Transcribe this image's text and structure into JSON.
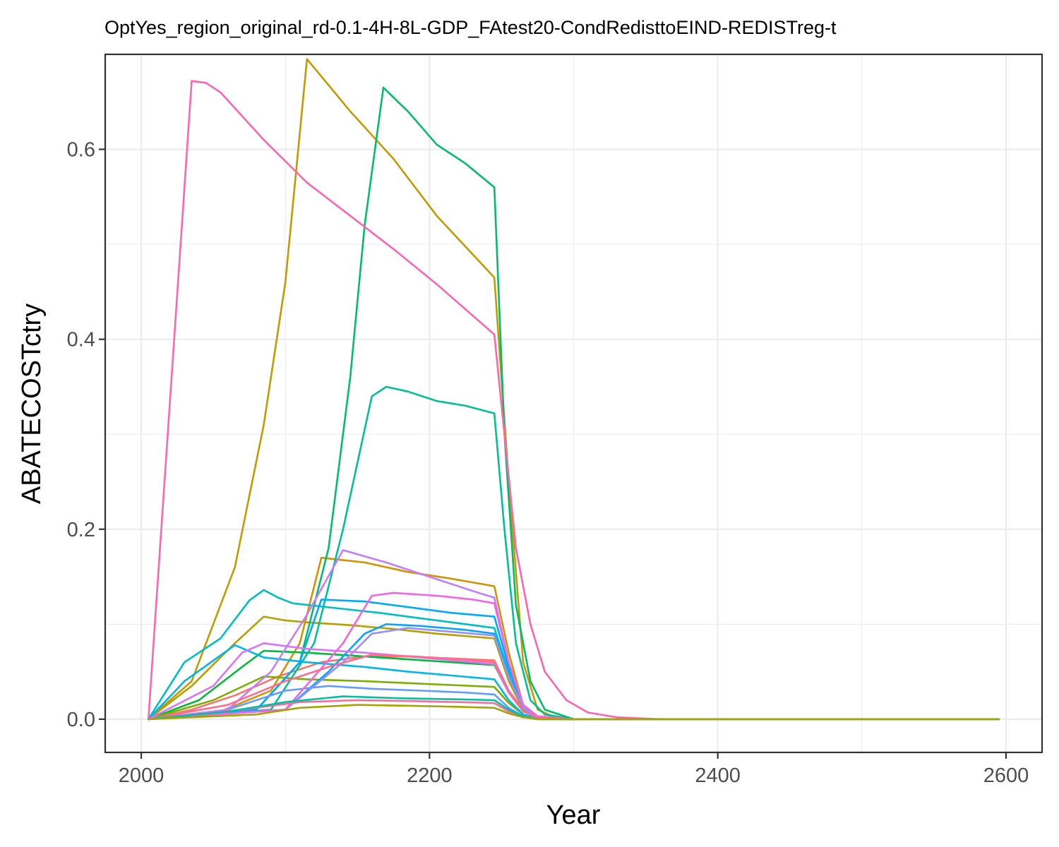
{
  "chart_data": {
    "type": "line",
    "title": "OptYes_region_original_rd-0.1-4H-8L-GDP_FAtest20-CondRedisttoEIND-REDISTreg-t",
    "xlabel": "Year",
    "ylabel": "ABATECOSTctry",
    "xlim": [
      1975,
      2625
    ],
    "ylim": [
      -0.035,
      0.7
    ],
    "x_ticks": [
      2000,
      2200,
      2400,
      2600
    ],
    "x_tick_labels": [
      "2000",
      "2200",
      "2400",
      "2600"
    ],
    "x_minor_ticks": [
      2100,
      2300,
      2500
    ],
    "y_ticks": [
      0.0,
      0.2,
      0.4,
      0.6
    ],
    "y_tick_labels": [
      "0.0",
      "0.2",
      "0.4",
      "0.6"
    ],
    "y_minor_ticks": [
      0.1,
      0.3,
      0.5
    ],
    "grid": true,
    "legend": "none",
    "series": [
      {
        "color": "#F8766D",
        "x": [
          2005,
          2035,
          2065,
          2095,
          2125,
          2155,
          2185,
          2215,
          2245,
          2255,
          2265,
          2275,
          2300,
          2400,
          2595
        ],
        "y": [
          0,
          0.01,
          0.025,
          0.045,
          0.06,
          0.066,
          0.066,
          0.064,
          0.062,
          0.03,
          0.01,
          0.003,
          0,
          0,
          0
        ]
      },
      {
        "color": "#C49A00",
        "x": [
          2005,
          2035,
          2065,
          2085,
          2100,
          2115,
          2145,
          2175,
          2205,
          2245,
          2255,
          2265,
          2275,
          2290,
          2400,
          2595
        ],
        "y": [
          0,
          0.04,
          0.16,
          0.31,
          0.46,
          0.695,
          0.64,
          0.59,
          0.53,
          0.465,
          0.25,
          0.06,
          0.01,
          0,
          0,
          0
        ]
      },
      {
        "color": "#B79F00",
        "x": [
          2005,
          2035,
          2065,
          2085,
          2100,
          2115,
          2145,
          2175,
          2205,
          2245,
          2255,
          2265,
          2275,
          2300,
          2400,
          2595
        ],
        "y": [
          0,
          0.035,
          0.08,
          0.108,
          0.104,
          0.102,
          0.099,
          0.095,
          0.09,
          0.085,
          0.04,
          0.01,
          0.002,
          0,
          0,
          0
        ]
      },
      {
        "color": "#D39200",
        "x": [
          2005,
          2050,
          2090,
          2110,
          2125,
          2155,
          2185,
          2215,
          2245,
          2255,
          2265,
          2275,
          2300,
          2400,
          2595
        ],
        "y": [
          0,
          0.005,
          0.03,
          0.08,
          0.17,
          0.165,
          0.155,
          0.148,
          0.14,
          0.07,
          0.015,
          0.003,
          0,
          0,
          0
        ]
      },
      {
        "color": "#00BA38",
        "x": [
          2005,
          2040,
          2070,
          2085,
          2115,
          2155,
          2185,
          2215,
          2245,
          2255,
          2265,
          2275,
          2300,
          2400,
          2595
        ],
        "y": [
          0,
          0.02,
          0.055,
          0.072,
          0.07,
          0.066,
          0.063,
          0.06,
          0.057,
          0.028,
          0.008,
          0.002,
          0,
          0,
          0
        ]
      },
      {
        "color": "#7CAE00",
        "x": [
          2005,
          2050,
          2085,
          2115,
          2155,
          2185,
          2215,
          2245,
          2255,
          2265,
          2275,
          2300,
          2400,
          2595
        ],
        "y": [
          0,
          0.02,
          0.045,
          0.042,
          0.04,
          0.038,
          0.036,
          0.034,
          0.017,
          0.005,
          0.001,
          0,
          0,
          0
        ]
      },
      {
        "color": "#00BE67",
        "x": [
          2005,
          2080,
          2110,
          2130,
          2145,
          2155,
          2168,
          2185,
          2205,
          2225,
          2245,
          2252,
          2260,
          2270,
          2280,
          2300,
          2400,
          2595
        ],
        "y": [
          0,
          0.01,
          0.06,
          0.18,
          0.36,
          0.52,
          0.665,
          0.64,
          0.605,
          0.585,
          0.56,
          0.3,
          0.12,
          0.04,
          0.01,
          0,
          0,
          0
        ]
      },
      {
        "color": "#00C094",
        "x": [
          2005,
          2090,
          2120,
          2140,
          2160,
          2170,
          2185,
          2205,
          2225,
          2245,
          2252,
          2260,
          2270,
          2280,
          2300,
          2400,
          2595
        ],
        "y": [
          0,
          0.01,
          0.08,
          0.2,
          0.34,
          0.35,
          0.345,
          0.335,
          0.33,
          0.322,
          0.2,
          0.08,
          0.02,
          0.005,
          0,
          0,
          0
        ]
      },
      {
        "color": "#00BFC4",
        "x": [
          2005,
          2030,
          2055,
          2075,
          2085,
          2095,
          2105,
          2135,
          2165,
          2195,
          2225,
          2245,
          2255,
          2265,
          2275,
          2300,
          2400,
          2595
        ],
        "y": [
          0,
          0.06,
          0.085,
          0.125,
          0.136,
          0.128,
          0.122,
          0.117,
          0.112,
          0.106,
          0.1,
          0.096,
          0.05,
          0.015,
          0.003,
          0,
          0,
          0
        ]
      },
      {
        "color": "#00B6EB",
        "x": [
          2005,
          2030,
          2065,
          2085,
          2115,
          2155,
          2185,
          2215,
          2245,
          2255,
          2265,
          2275,
          2300,
          2400,
          2595
        ],
        "y": [
          0,
          0.04,
          0.078,
          0.065,
          0.06,
          0.055,
          0.05,
          0.046,
          0.042,
          0.02,
          0.005,
          0.001,
          0,
          0,
          0
        ]
      },
      {
        "color": "#00A9FF",
        "x": [
          2005,
          2080,
          2110,
          2125,
          2155,
          2185,
          2215,
          2245,
          2255,
          2265,
          2275,
          2300,
          2400,
          2595
        ],
        "y": [
          0,
          0.01,
          0.06,
          0.126,
          0.124,
          0.118,
          0.112,
          0.108,
          0.055,
          0.015,
          0.003,
          0,
          0,
          0
        ]
      },
      {
        "color": "#06A4FF",
        "x": [
          2005,
          2100,
          2130,
          2155,
          2170,
          2195,
          2225,
          2245,
          2255,
          2265,
          2275,
          2300,
          2400,
          2595
        ],
        "y": [
          0,
          0.01,
          0.05,
          0.09,
          0.1,
          0.098,
          0.094,
          0.09,
          0.045,
          0.012,
          0.002,
          0,
          0,
          0
        ]
      },
      {
        "color": "#619CFF",
        "x": [
          2005,
          2060,
          2100,
          2130,
          2160,
          2195,
          2225,
          2245,
          2255,
          2265,
          2275,
          2300,
          2400,
          2595
        ],
        "y": [
          0,
          0.01,
          0.03,
          0.035,
          0.032,
          0.03,
          0.028,
          0.026,
          0.012,
          0.003,
          0.001,
          0,
          0,
          0
        ]
      },
      {
        "color": "#9590FF",
        "x": [
          2005,
          2100,
          2140,
          2160,
          2185,
          2215,
          2245,
          2255,
          2265,
          2275,
          2300,
          2400,
          2595
        ],
        "y": [
          0,
          0.01,
          0.06,
          0.09,
          0.096,
          0.092,
          0.088,
          0.044,
          0.012,
          0.002,
          0,
          0,
          0
        ]
      },
      {
        "color": "#C77CFF",
        "x": [
          2005,
          2060,
          2090,
          2115,
          2140,
          2170,
          2200,
          2230,
          2245,
          2255,
          2265,
          2275,
          2300,
          2400,
          2595
        ],
        "y": [
          0,
          0.01,
          0.05,
          0.11,
          0.178,
          0.165,
          0.15,
          0.135,
          0.128,
          0.06,
          0.015,
          0.003,
          0,
          0,
          0
        ]
      },
      {
        "color": "#DB72FB",
        "x": [
          2005,
          2050,
          2070,
          2085,
          2115,
          2155,
          2185,
          2215,
          2245,
          2255,
          2265,
          2275,
          2300,
          2400,
          2595
        ],
        "y": [
          0,
          0.035,
          0.07,
          0.08,
          0.074,
          0.07,
          0.066,
          0.062,
          0.058,
          0.028,
          0.008,
          0.002,
          0,
          0,
          0
        ]
      },
      {
        "color": "#F564E3",
        "x": [
          2005,
          2100,
          2140,
          2160,
          2175,
          2205,
          2230,
          2245,
          2255,
          2265,
          2275,
          2300,
          2400,
          2595
        ],
        "y": [
          0,
          0.01,
          0.08,
          0.13,
          0.133,
          0.13,
          0.126,
          0.122,
          0.06,
          0.015,
          0.003,
          0,
          0,
          0
        ]
      },
      {
        "color": "#FF64B0",
        "x": [
          2005,
          2035,
          2045,
          2055,
          2085,
          2115,
          2145,
          2175,
          2205,
          2245,
          2252,
          2260,
          2270,
          2280,
          2295,
          2310,
          2330,
          2360,
          2400,
          2595
        ],
        "y": [
          0,
          0.672,
          0.67,
          0.66,
          0.61,
          0.565,
          0.53,
          0.495,
          0.458,
          0.405,
          0.3,
          0.18,
          0.1,
          0.05,
          0.02,
          0.007,
          0.002,
          0,
          0,
          0
        ]
      },
      {
        "color": "#FF6C91",
        "x": [
          2005,
          2060,
          2100,
          2130,
          2160,
          2190,
          2220,
          2245,
          2255,
          2265,
          2275,
          2300,
          2400,
          2595
        ],
        "y": [
          0,
          0.015,
          0.04,
          0.055,
          0.068,
          0.066,
          0.063,
          0.06,
          0.03,
          0.008,
          0.002,
          0,
          0,
          0
        ]
      },
      {
        "color": "#FF6A98",
        "x": [
          2005,
          2070,
          2110,
          2150,
          2190,
          2220,
          2245,
          2255,
          2265,
          2275,
          2300,
          2400,
          2595
        ],
        "y": [
          0,
          0.01,
          0.018,
          0.02,
          0.019,
          0.018,
          0.017,
          0.008,
          0.002,
          0,
          0,
          0,
          0
        ]
      },
      {
        "color": "#00C1A3",
        "x": [
          2005,
          2060,
          2100,
          2140,
          2180,
          2215,
          2245,
          2255,
          2265,
          2275,
          2300,
          2400,
          2595
        ],
        "y": [
          0,
          0.008,
          0.018,
          0.024,
          0.022,
          0.021,
          0.02,
          0.01,
          0.003,
          0,
          0,
          0,
          0
        ]
      },
      {
        "color": "#A3A500",
        "x": [
          2005,
          2080,
          2110,
          2150,
          2190,
          2220,
          2245,
          2255,
          2265,
          2275,
          2300,
          2400,
          2595
        ],
        "y": [
          0,
          0.005,
          0.012,
          0.015,
          0.014,
          0.013,
          0.012,
          0.006,
          0.002,
          0,
          0,
          0,
          0
        ]
      }
    ]
  }
}
